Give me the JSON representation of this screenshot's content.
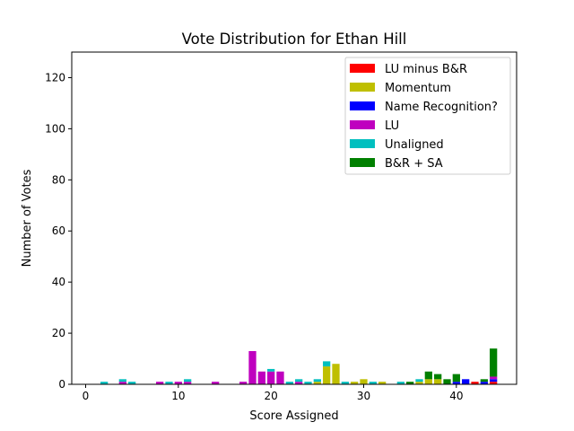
{
  "chart_data": {
    "type": "bar",
    "stacked": true,
    "title": "Vote Distribution for Ethan Hill",
    "xlabel": "Score Assigned",
    "ylabel": "Number of Votes",
    "xlim": [
      -1.5,
      46.5
    ],
    "ylim": [
      0,
      130
    ],
    "xticks": [
      0,
      10,
      20,
      30,
      40
    ],
    "yticks": [
      0,
      20,
      40,
      60,
      80,
      100,
      120
    ],
    "grid": false,
    "legend_position": "top-right",
    "colors": {
      "lu_minus_br": "#ff0000",
      "momentum": "#bfbf00",
      "name_recognition": "#0000ff",
      "lu": "#bf00bf",
      "unaligned": "#00bfbf",
      "br_sa": "#008000"
    },
    "series": [
      {
        "key": "lu_minus_br",
        "name": "LU minus B&R",
        "points": [
          [
            42,
            1
          ],
          [
            44,
            1
          ]
        ]
      },
      {
        "key": "momentum",
        "name": "Momentum",
        "points": [
          [
            25,
            1
          ],
          [
            26,
            7
          ],
          [
            27,
            8
          ],
          [
            29,
            1
          ],
          [
            30,
            2
          ],
          [
            32,
            1
          ],
          [
            36,
            1
          ],
          [
            37,
            2
          ],
          [
            38,
            2
          ]
        ]
      },
      {
        "key": "name_recognition",
        "name": "Name Recognition?",
        "points": [
          [
            40,
            1
          ],
          [
            41,
            2
          ],
          [
            43,
            1
          ],
          [
            44,
            1
          ]
        ]
      },
      {
        "key": "lu",
        "name": "LU",
        "points": [
          [
            4,
            1
          ],
          [
            8,
            1
          ],
          [
            10,
            1
          ],
          [
            11,
            1
          ],
          [
            14,
            1
          ],
          [
            17,
            1
          ],
          [
            18,
            13
          ],
          [
            19,
            5
          ],
          [
            20,
            5
          ],
          [
            21,
            5
          ],
          [
            23,
            1
          ],
          [
            44,
            1
          ]
        ]
      },
      {
        "key": "unaligned",
        "name": "Unaligned",
        "points": [
          [
            2,
            1
          ],
          [
            4,
            1
          ],
          [
            5,
            1
          ],
          [
            9,
            1
          ],
          [
            11,
            1
          ],
          [
            20,
            1
          ],
          [
            22,
            1
          ],
          [
            23,
            1
          ],
          [
            24,
            1
          ],
          [
            25,
            1
          ],
          [
            26,
            2
          ],
          [
            28,
            1
          ],
          [
            31,
            1
          ],
          [
            34,
            1
          ],
          [
            36,
            1
          ]
        ]
      },
      {
        "key": "br_sa",
        "name": "B&R + SA",
        "points": [
          [
            35,
            1
          ],
          [
            37,
            3
          ],
          [
            38,
            2
          ],
          [
            39,
            2
          ],
          [
            40,
            3
          ],
          [
            43,
            1
          ],
          [
            44,
            11
          ]
        ]
      }
    ]
  }
}
